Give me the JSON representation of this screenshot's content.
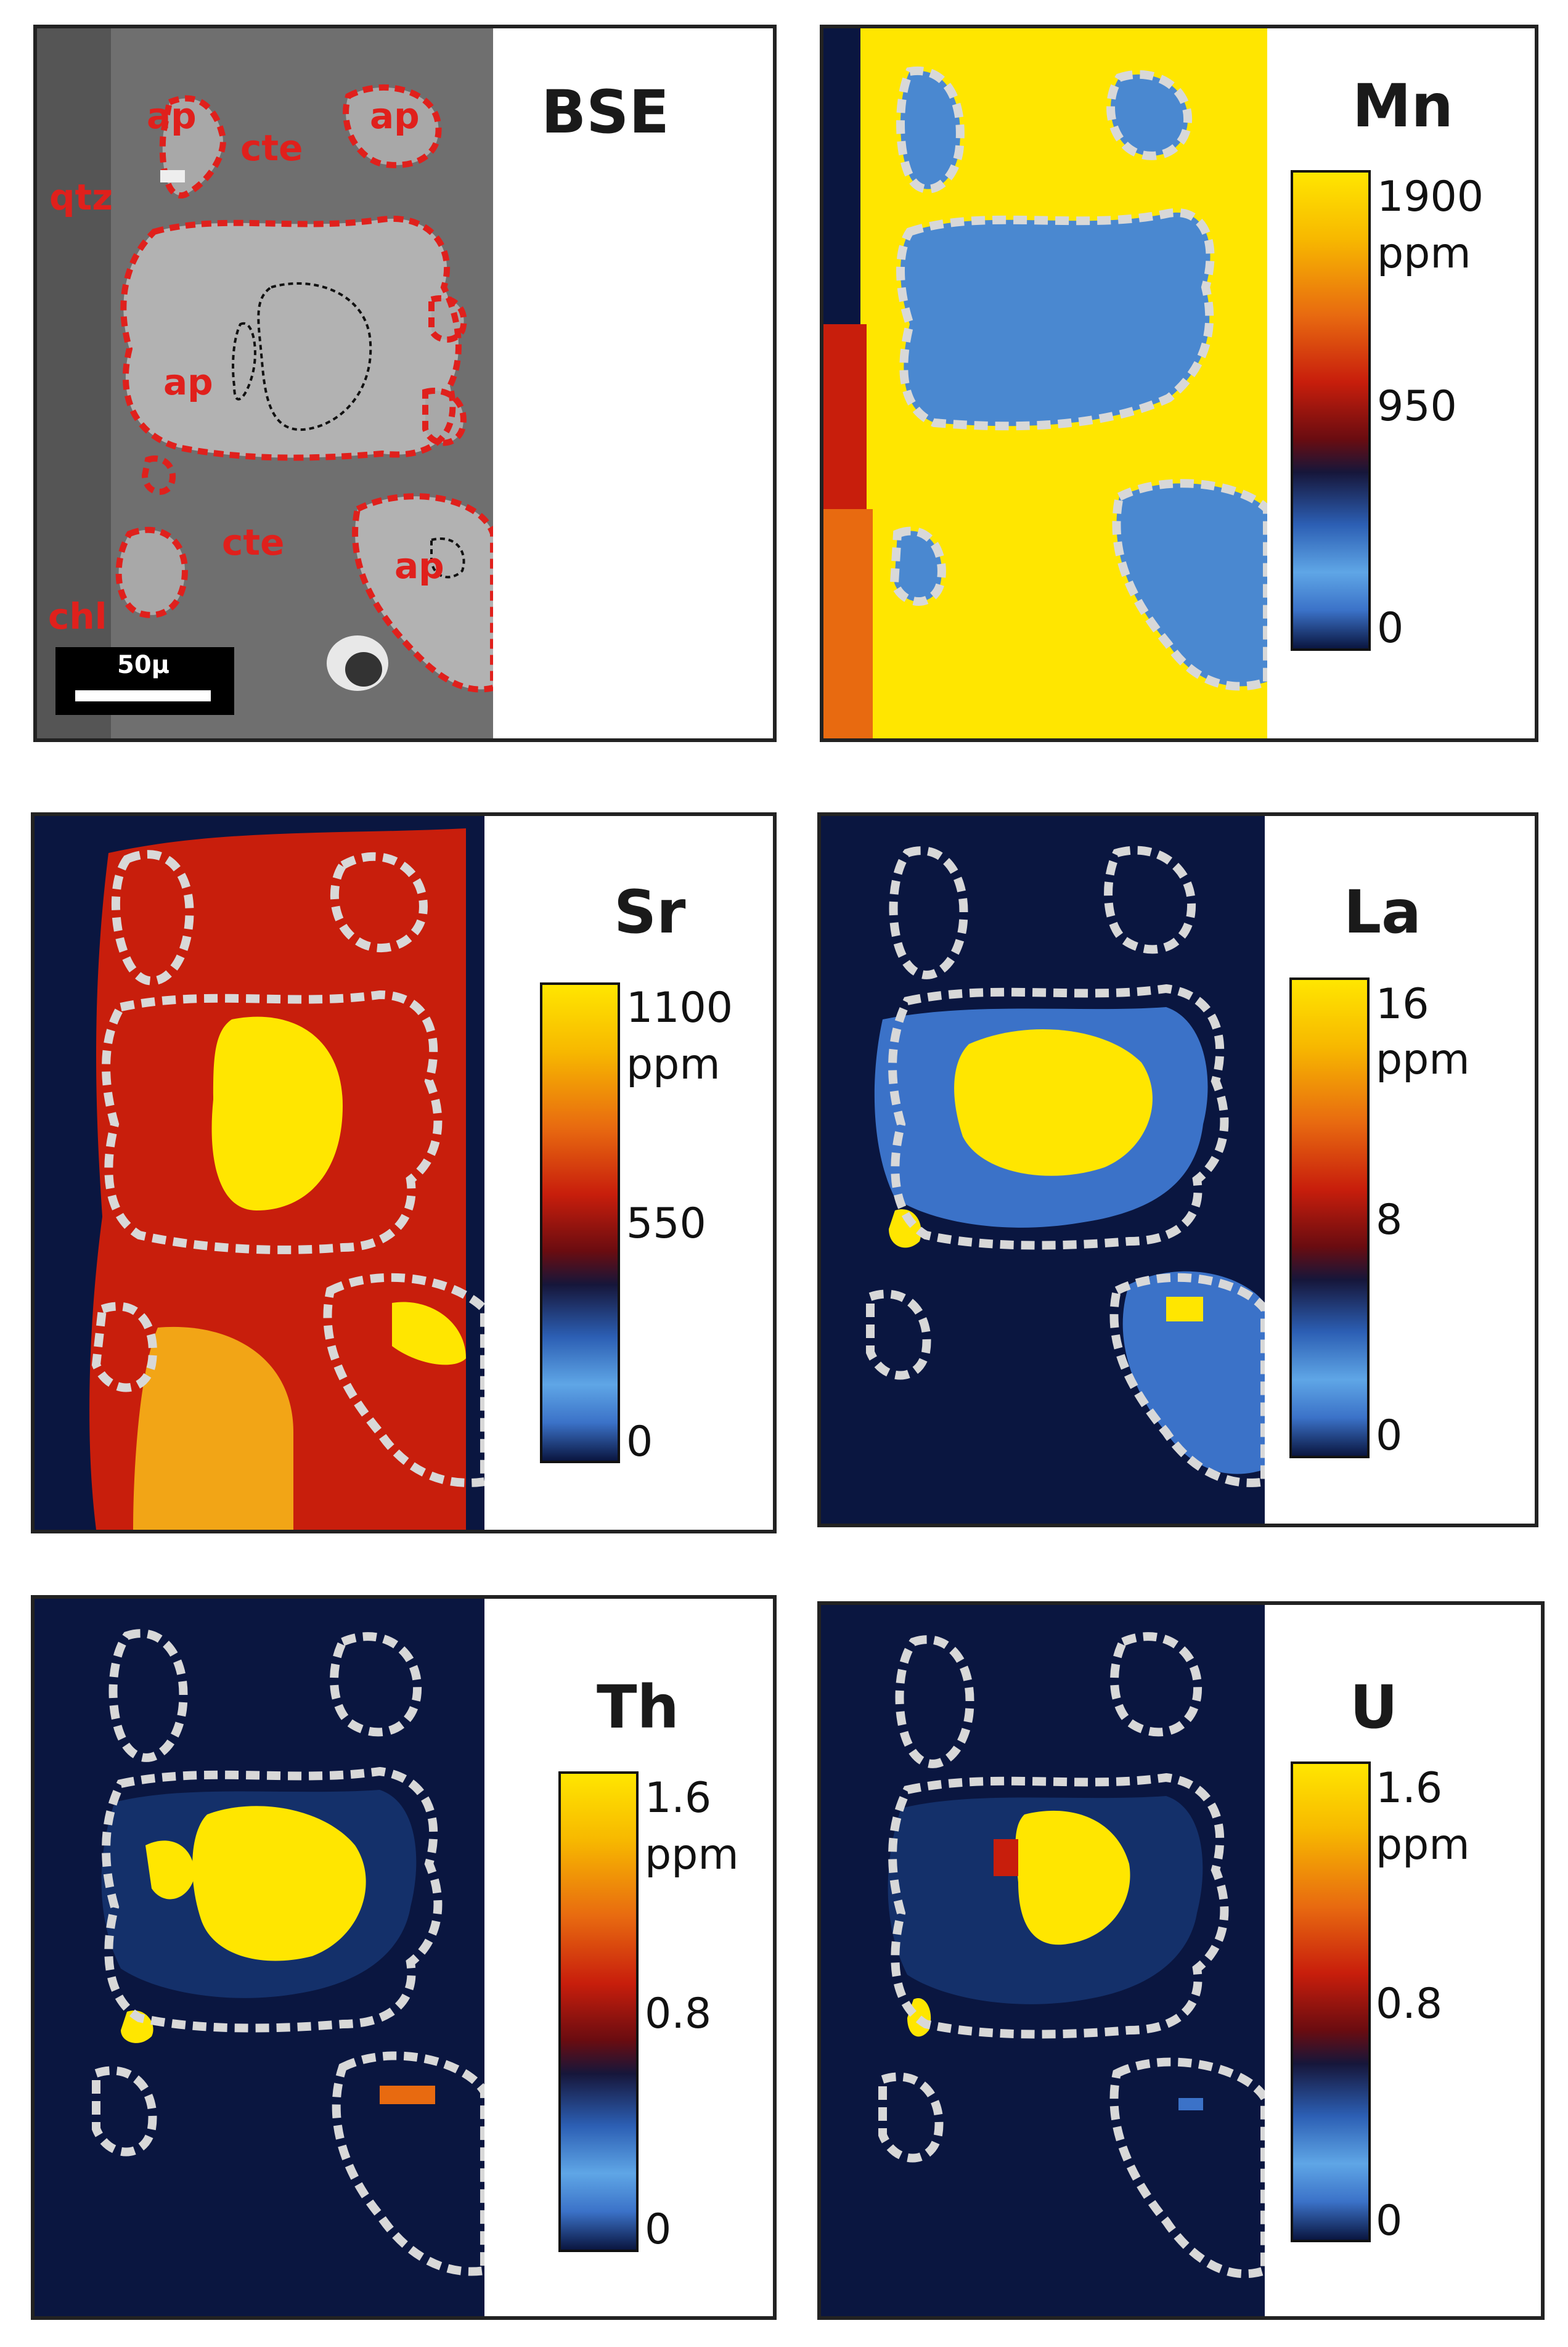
{
  "panels": [
    {
      "element": "BSE"
    },
    {
      "element": "Mn",
      "max": "1900",
      "unit": "ppm",
      "mid": "950",
      "min": "0"
    },
    {
      "element": "Sr",
      "max": "1100",
      "unit": "ppm",
      "mid": "550",
      "min": "0"
    },
    {
      "element": "La",
      "max": "16",
      "unit": "ppm",
      "mid": "8",
      "min": "0"
    },
    {
      "element": "Th",
      "max": "1.6",
      "unit": "ppm",
      "mid": "0.8",
      "min": "0"
    },
    {
      "element": "U",
      "max": "1.6",
      "unit": "ppm",
      "mid": "0.8",
      "min": "0"
    }
  ],
  "bse_labels": {
    "ap": "ap",
    "cte": "cte",
    "qtz": "qtz",
    "chl": "chl"
  },
  "scale_bar": "50μ",
  "colors": {
    "yellow": "#ffe600",
    "red": "#c81e0c",
    "blue": "#5fa6e6",
    "navy": "#0a1640",
    "outline_red": "#e0201c",
    "outline_white": "#d8d8d8"
  }
}
